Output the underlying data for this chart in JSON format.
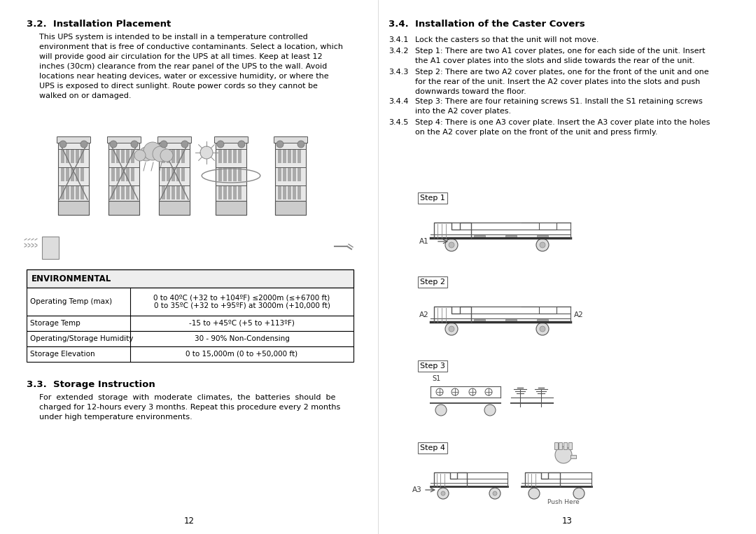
{
  "bg_color": "#ffffff",
  "text_color": "#000000",
  "page_width": 10.8,
  "page_height": 7.63,
  "left_heading_32": "3.2.  Installation Placement",
  "left_para_32": "This UPS system is intended to be install in a temperature controlled\nenvironment that is free of conductive contaminants. Select a location, which\nwill provide good air circulation for the UPS at all times. Keep at least 12\ninches (30cm) clearance from the rear panel of the UPS to the wall. Avoid\nlocations near heating devices, water or excessive humidity, or where the\nUPS is exposed to direct sunlight. Route power cords so they cannot be\nwalked on or damaged.",
  "env_header": "ENVIRONMENTAL",
  "env_rows": [
    [
      "Operating Temp (max)",
      "0 to 40ºC (+32 to +104ºF) ≤2000m (≤+6700 ft)\n0 to 35ºC (+32 to +95ºF) at 3000m (+10,000 ft)"
    ],
    [
      "Storage Temp",
      "-15 to +45ºC (+5 to +113ºF)"
    ],
    [
      "Operating/Storage Humidity",
      "30 - 90% Non-Condensing"
    ],
    [
      "Storage Elevation",
      "0 to 15,000m (0 to +50,000 ft)"
    ]
  ],
  "left_heading_33": "3.3.  Storage Instruction",
  "left_para_33": "For  extended  storage  with  moderate  climates,  the  batteries  should  be\ncharged for 12-hours every 3 months. Repeat this procedure every 2 months\nunder high temperature environments.",
  "page_num_left": "12",
  "right_heading_34": "3.4.  Installation of the Caster Covers",
  "right_items": [
    [
      "3.4.1",
      "Lock the casters so that the unit will not move."
    ],
    [
      "3.4.2",
      "Step 1: There are two A1 cover plates, one for each side of the unit. Insert\nthe A1 cover plates into the slots and slide towards the rear of the unit."
    ],
    [
      "3.4.3",
      "Step 2: There are two A2 cover plates, one for the front of the unit and one\nfor the rear of the unit. Insert the A2 cover plates into the slots and push\ndownwards toward the floor."
    ],
    [
      "3.4.4",
      "Step 3: There are four retaining screws S1. Install the S1 retaining screws\ninto the A2 cover plates."
    ],
    [
      "3.4.5",
      "Step 4: There is one A3 cover plate. Insert the A3 cover plate into the holes\non the A2 cover plate on the front of the unit and press firmly."
    ]
  ],
  "page_num_right": "13"
}
